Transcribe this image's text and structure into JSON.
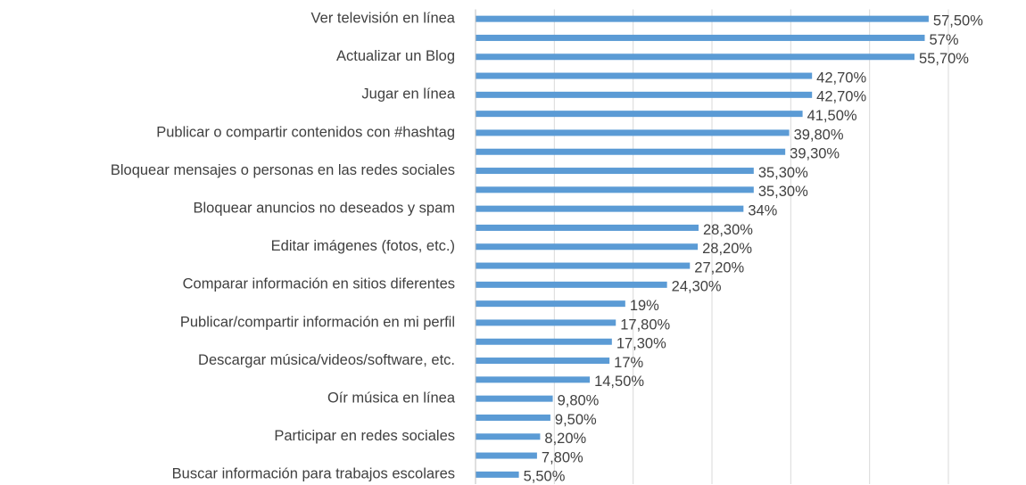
{
  "chart_data": {
    "type": "barh",
    "categories": [
      "Ver televisión en línea",
      null,
      "Actualizar un Blog",
      null,
      "Jugar en línea",
      null,
      "Publicar o compartir contenidos con #hashtag",
      null,
      "Bloquear mensajes o personas en las redes sociales",
      null,
      "Bloquear anuncios no deseados y spam",
      null,
      "Editar imágenes (fotos, etc.)",
      null,
      "Comparar información en sitios diferentes",
      null,
      "Publicar/compartir información en mi perfil",
      null,
      "Descargar música/videos/software, etc.",
      null,
      "Oír música en línea",
      null,
      "Participar en redes sociales",
      null,
      "Buscar información para trabajos escolares"
    ],
    "values": [
      57.5,
      57,
      55.7,
      42.7,
      42.7,
      41.5,
      39.8,
      39.3,
      35.3,
      35.3,
      34,
      28.3,
      28.2,
      27.2,
      24.3,
      19,
      17.8,
      17.3,
      17,
      14.5,
      9.8,
      9.5,
      8.2,
      7.8,
      5.5
    ],
    "value_labels": [
      "57,50%",
      "57%",
      "55,70%",
      "42,70%",
      "42,70%",
      "41,50%",
      "39,80%",
      "39,30%",
      "35,30%",
      "35,30%",
      "34%",
      "28,30%",
      "28,20%",
      "27,20%",
      "24,30%",
      "19%",
      "17,80%",
      "17,30%",
      "17%",
      "14,50%",
      "9,80%",
      "9,50%",
      "8,20%",
      "7,80%",
      "5,50%"
    ],
    "color": "#5b9bd5",
    "xlim": [
      0,
      60
    ],
    "xticks": [
      0,
      10,
      20,
      30,
      40,
      50,
      60
    ],
    "grid": true
  }
}
